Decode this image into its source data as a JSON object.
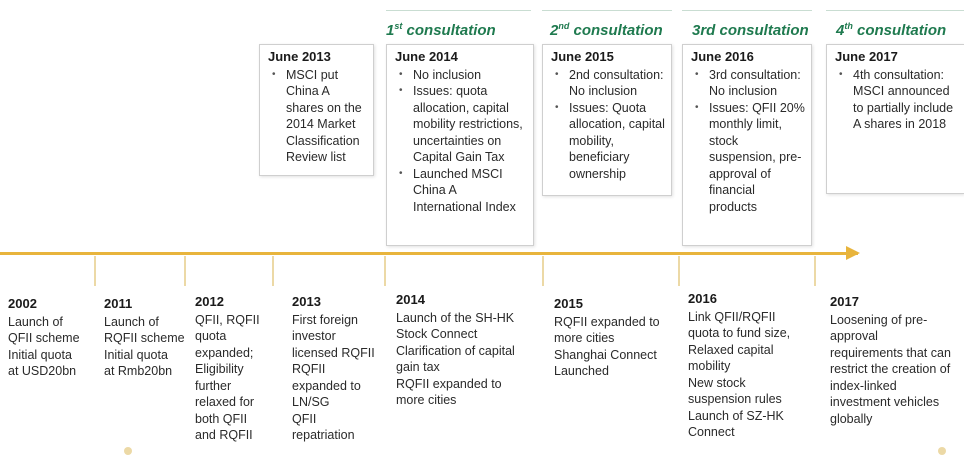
{
  "consultations": [
    {
      "prefix": "1",
      "sup": "st",
      "suffix": " consultation"
    },
    {
      "prefix": "2",
      "sup": "nd",
      "suffix": " consultation"
    },
    {
      "prefix": "3rd consultation",
      "sup": "",
      "suffix": ""
    },
    {
      "prefix": "4",
      "sup": "th",
      "suffix": " consultation"
    }
  ],
  "boxes": [
    {
      "title": "June 2013",
      "bullets": [
        "MSCI put China A shares on the 2014 Market Classification Review list"
      ]
    },
    {
      "title": "June 2014",
      "bullets": [
        "No inclusion",
        "Issues: quota allocation, capital mobility restrictions, uncertainties on Capital Gain Tax",
        "Launched MSCI China A International Index"
      ]
    },
    {
      "title": "June 2015",
      "bullets": [
        "2nd consultation: No inclusion",
        "Issues: Quota allocation, capital mobility, beneficiary ownership"
      ]
    },
    {
      "title": "June 2016",
      "bullets": [
        "3rd consultation: No inclusion",
        "Issues: QFII 20% monthly limit, stock suspension, pre-approval of financial products"
      ]
    },
    {
      "title": "June 2017",
      "bullets": [
        "4th consultation: MSCI announced to partially include A shares in 2018"
      ]
    }
  ],
  "events": [
    {
      "year": "2002",
      "lines": [
        "Launch of",
        "QFII scheme",
        "Initial quota",
        "at USD20bn"
      ]
    },
    {
      "year": "2011",
      "lines": [
        "Launch of",
        "RQFII scheme",
        "Initial quota",
        "at Rmb20bn"
      ]
    },
    {
      "year": "2012",
      "lines": [
        "QFII, RQFII",
        "quota",
        "expanded;",
        "Eligibility",
        "further",
        "relaxed for",
        "both QFII",
        "and RQFII"
      ]
    },
    {
      "year": "2013",
      "lines": [
        "First foreign",
        "investor",
        "licensed RQFII",
        "RQFII",
        "expanded to",
        "LN/SG",
        "QFII",
        "repatriation"
      ]
    },
    {
      "year": "2014",
      "lines": [
        "Launch of the SH-HK",
        "Stock Connect",
        "Clarification of capital",
        "gain tax",
        "RQFII expanded to",
        "more cities"
      ]
    },
    {
      "year": "2015",
      "lines": [
        "RQFII expanded to",
        "more cities",
        "Shanghai Connect",
        "Launched"
      ]
    },
    {
      "year": "2016",
      "lines": [
        "Link QFII/RQFII",
        "quota to fund size,",
        "Relaxed capital",
        "mobility",
        "New stock",
        "suspension rules",
        "Launch of SZ-HK",
        "Connect"
      ]
    },
    {
      "year": "2017",
      "lines": [
        "Loosening of pre-",
        "approval",
        "requirements that can",
        "restrict the creation of",
        "index-linked",
        "investment vehicles",
        "globally"
      ]
    }
  ],
  "colors": {
    "accent": "#1f7a4f",
    "timeline": "#e8b43c",
    "tick": "#ecd9a6"
  }
}
